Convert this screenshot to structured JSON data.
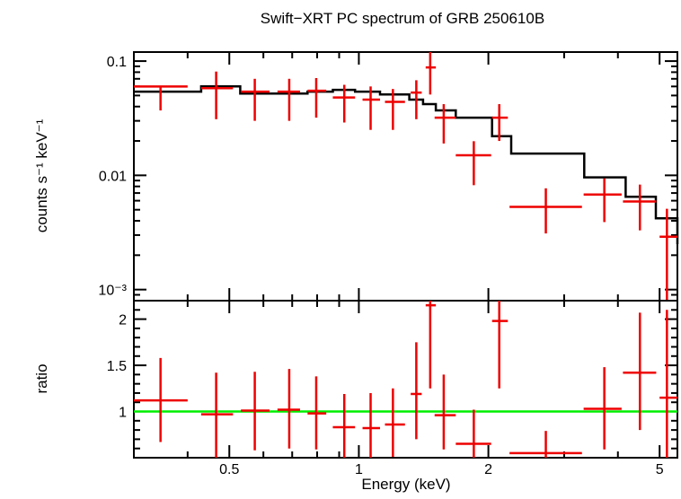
{
  "chart_data": [
    {
      "panel": "spectrum",
      "type": "scatter",
      "title": "Swift−XRT PC spectrum of GRB 250610B",
      "ylabel": "counts s⁻¹ keV⁻¹",
      "x_scale": "log",
      "y_scale": "log",
      "xlim": [
        0.3,
        5.5
      ],
      "ylim": [
        0.0008,
        0.12
      ],
      "y_ticks": [
        {
          "value": 0.1,
          "label": "0.1"
        },
        {
          "value": 0.01,
          "label": "0.01"
        },
        {
          "value": 0.001,
          "label": "10⁻³"
        }
      ],
      "colors": {
        "data": "#ee0000",
        "model": "#000000"
      },
      "series": [
        {
          "type": "errorbar",
          "x": [
            0.346,
            0.466,
            0.573,
            0.689,
            0.796,
            0.925,
            1.065,
            1.2,
            1.36,
            1.465,
            1.575,
            1.85,
            2.12,
            2.72,
            3.72,
            4.5,
            5.2
          ],
          "xerr_low": [
            0.046,
            0.036,
            0.041,
            0.042,
            0.036,
            0.055,
            0.045,
            0.05,
            0.04,
            0.035,
            0.075,
            0.17,
            0.08,
            0.48,
            0.39,
            0.39,
            0.2
          ],
          "xerr_high": [
            0.054,
            0.044,
            0.047,
            0.041,
            0.044,
            0.055,
            0.055,
            0.08,
            0.04,
            0.045,
            0.105,
            0.18,
            0.1,
            0.58,
            0.36,
            0.41,
            0.3
          ],
          "y": [
            0.06,
            0.058,
            0.054,
            0.054,
            0.055,
            0.048,
            0.046,
            0.044,
            0.053,
            0.088,
            0.032,
            0.015,
            0.032,
            0.0053,
            0.0068,
            0.0059,
            0.0029
          ],
          "yerr_low": [
            0.023,
            0.027,
            0.024,
            0.024,
            0.023,
            0.019,
            0.021,
            0.019,
            0.022,
            0.037,
            0.013,
            0.0068,
            0.012,
            0.0022,
            0.0029,
            0.0026,
            0.0021
          ],
          "yerr_high": [
            0.0,
            0.023,
            0.016,
            0.016,
            0.016,
            0.014,
            0.014,
            0.013,
            0.015,
            0.032,
            0.01,
            0.0049,
            0.01,
            0.0024,
            0.0026,
            0.0024,
            0.0022
          ]
        },
        {
          "type": "step",
          "bin_edges": [
            0.3,
            0.43,
            0.53,
            0.65,
            0.76,
            0.87,
            0.98,
            1.12,
            1.31,
            1.41,
            1.51,
            1.68,
            2.04,
            2.26,
            3.34,
            4.17,
            4.9,
            5.5
          ],
          "y": [
            0.054,
            0.06,
            0.052,
            0.052,
            0.054,
            0.056,
            0.054,
            0.051,
            0.046,
            0.042,
            0.037,
            0.032,
            0.022,
            0.0155,
            0.0096,
            0.0065,
            0.0042,
            0.0025
          ]
        }
      ]
    },
    {
      "panel": "ratio",
      "type": "scatter",
      "xlabel": "Energy (keV)",
      "ylabel": "ratio",
      "x_scale": "log",
      "y_scale": "linear",
      "xlim": [
        0.3,
        5.5
      ],
      "ylim": [
        0.5,
        2.2
      ],
      "x_ticks": [
        {
          "value": 0.5,
          "label": "0.5"
        },
        {
          "value": 1,
          "label": "1"
        },
        {
          "value": 2,
          "label": "2"
        },
        {
          "value": 5,
          "label": "5"
        }
      ],
      "y_ticks": [
        {
          "value": 1,
          "label": "1"
        },
        {
          "value": 1.5,
          "label": "1.5"
        },
        {
          "value": 2,
          "label": "2"
        }
      ],
      "colors": {
        "data": "#ee0000",
        "reference": "#00ee00"
      },
      "reference_line": 1,
      "series": [
        {
          "type": "errorbar",
          "x": [
            0.346,
            0.466,
            0.573,
            0.689,
            0.796,
            0.925,
            1.065,
            1.2,
            1.36,
            1.465,
            1.575,
            1.85,
            2.12,
            2.72,
            3.72,
            4.5,
            5.2
          ],
          "xerr_low": [
            0.046,
            0.036,
            0.041,
            0.042,
            0.036,
            0.055,
            0.045,
            0.05,
            0.04,
            0.035,
            0.075,
            0.17,
            0.08,
            0.48,
            0.39,
            0.39,
            0.2
          ],
          "xerr_high": [
            0.054,
            0.044,
            0.047,
            0.041,
            0.044,
            0.055,
            0.055,
            0.08,
            0.04,
            0.045,
            0.105,
            0.18,
            0.1,
            0.58,
            0.36,
            0.41,
            0.3
          ],
          "y": [
            1.12,
            0.97,
            1.01,
            1.02,
            0.98,
            0.83,
            0.82,
            0.86,
            1.19,
            2.15,
            0.96,
            0.65,
            1.98,
            0.55,
            1.03,
            1.42,
            1.15
          ],
          "yerr_low": [
            0.45,
            0.47,
            0.43,
            0.42,
            0.39,
            0.33,
            0.36,
            0.35,
            0.49,
            0.9,
            0.37,
            0.3,
            0.73,
            0.23,
            0.44,
            0.62,
            0.83
          ],
          "yerr_high": [
            0.46,
            0.45,
            0.42,
            0.44,
            0.4,
            0.36,
            0.38,
            0.39,
            0.56,
            0.55,
            0.44,
            0.37,
            0.6,
            0.24,
            0.45,
            0.65,
            0.95
          ]
        }
      ]
    }
  ]
}
